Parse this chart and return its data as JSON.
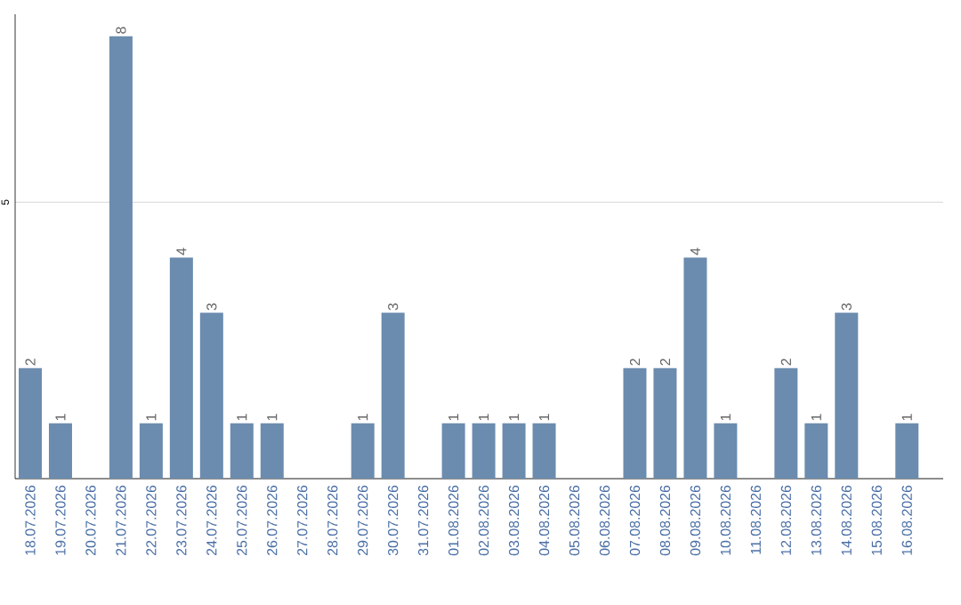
{
  "chart_data": {
    "type": "bar",
    "categories": [
      "18.07.2026",
      "19.07.2026",
      "20.07.2026",
      "21.07.2026",
      "22.07.2026",
      "23.07.2026",
      "24.07.2026",
      "25.07.2026",
      "26.07.2026",
      "27.07.2026",
      "28.07.2026",
      "29.07.2026",
      "30.07.2026",
      "31.07.2026",
      "01.08.2026",
      "02.08.2026",
      "03.08.2026",
      "04.08.2026",
      "05.08.2026",
      "06.08.2026",
      "07.08.2026",
      "08.08.2026",
      "09.08.2026",
      "10.08.2026",
      "11.08.2026",
      "12.08.2026",
      "13.08.2026",
      "14.08.2026",
      "15.08.2026",
      "16.08.2026"
    ],
    "values": [
      2,
      1,
      0,
      8,
      1,
      4,
      3,
      1,
      1,
      0,
      0,
      1,
      3,
      0,
      1,
      1,
      1,
      1,
      0,
      0,
      2,
      2,
      4,
      1,
      0,
      2,
      1,
      3,
      0,
      1
    ],
    "value_labels": [
      "2",
      "1",
      null,
      "8",
      "1",
      "4",
      "3",
      "1",
      "1",
      null,
      null,
      "1",
      "3",
      null,
      "1",
      "1",
      "1",
      "1",
      null,
      null,
      "2",
      "2",
      "4",
      "1",
      null,
      "2",
      "1",
      "3",
      null,
      "1"
    ],
    "color": "#6b8cae",
    "ylim": [
      0,
      8.4
    ],
    "yticks": [
      {
        "value": 0,
        "label": null
      },
      5
    ],
    "grid": "y"
  }
}
